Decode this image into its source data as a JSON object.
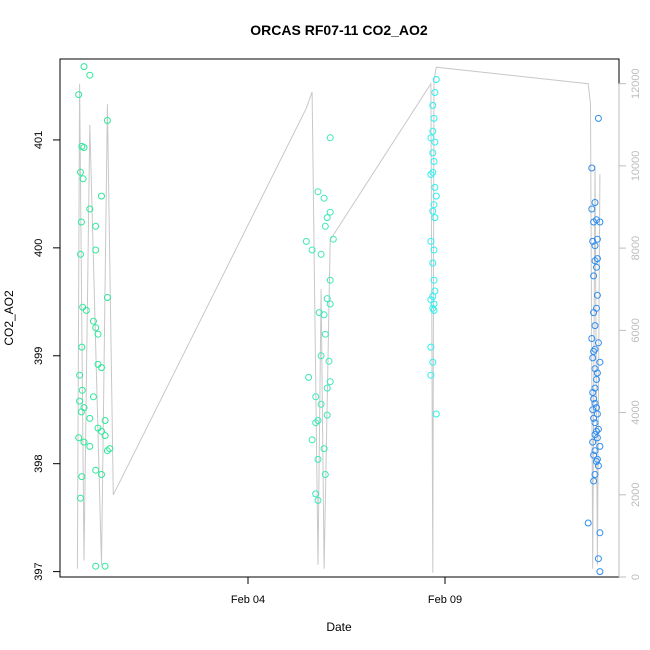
{
  "chart_data": {
    "type": "scatter",
    "title": "ORCAS RF07-11 CO2_AO2",
    "xlabel": "Date",
    "ylabel": "CO2_AO2",
    "x_ticks": [
      "Feb 04",
      "Feb 09"
    ],
    "y_ticks": [
      397,
      398,
      399,
      400,
      401
    ],
    "ylim": [
      396.95,
      401.75
    ],
    "right_axis": {
      "ticks": [
        0,
        2000,
        4000,
        6000,
        8000,
        10000,
        12000
      ],
      "ylim": [
        0,
        12600
      ],
      "color": "#bdbdbd"
    },
    "grid": false,
    "legend": "none",
    "series": [
      {
        "color": "#2ee89a",
        "points": [
          [
            0,
            401.68
          ],
          [
            0.05,
            401.6
          ],
          [
            0.2,
            401.18
          ],
          [
            -0.12,
            401.42
          ],
          [
            -0.05,
            400.94
          ],
          [
            0.0,
            400.93
          ],
          [
            -0.08,
            400.7
          ],
          [
            -0.02,
            400.64
          ],
          [
            0.15,
            400.48
          ],
          [
            0.05,
            400.36
          ],
          [
            -0.06,
            400.24
          ],
          [
            0.1,
            400.2
          ],
          [
            0.1,
            399.98
          ],
          [
            -0.08,
            399.94
          ],
          [
            0.2,
            399.54
          ],
          [
            -0.03,
            399.45
          ],
          [
            0.02,
            399.42
          ],
          [
            0.08,
            399.32
          ],
          [
            0.1,
            399.26
          ],
          [
            0.12,
            399.2
          ],
          [
            -0.05,
            399.08
          ],
          [
            0.12,
            398.92
          ],
          [
            0.15,
            398.89
          ],
          [
            -0.1,
            398.82
          ],
          [
            -0.04,
            398.68
          ],
          [
            0.08,
            398.62
          ],
          [
            -0.1,
            398.58
          ],
          [
            0.0,
            398.52
          ],
          [
            -0.06,
            398.48
          ],
          [
            0.05,
            398.42
          ],
          [
            0.18,
            398.4
          ],
          [
            0.12,
            398.33
          ],
          [
            0.15,
            398.3
          ],
          [
            0.18,
            398.26
          ],
          [
            -0.12,
            398.24
          ],
          [
            0.0,
            398.2
          ],
          [
            0.05,
            398.16
          ],
          [
            0.2,
            398.12
          ],
          [
            0.22,
            398.14
          ],
          [
            0.1,
            397.94
          ],
          [
            -0.05,
            397.88
          ],
          [
            0.15,
            397.9
          ],
          [
            -0.08,
            397.68
          ],
          [
            0.1,
            397.05
          ],
          [
            0.18,
            397.05
          ]
        ]
      },
      {
        "color": "#3de8b8",
        "points": [
          [
            2.2,
            401.02
          ],
          [
            2.0,
            400.52
          ],
          [
            2.1,
            400.46
          ],
          [
            2.2,
            400.33
          ],
          [
            2.15,
            400.28
          ],
          [
            2.12,
            400.2
          ],
          [
            2.25,
            400.08
          ],
          [
            1.9,
            400.06
          ],
          [
            1.95,
            399.98
          ],
          [
            2.05,
            399.94
          ],
          [
            2.2,
            399.7
          ],
          [
            2.15,
            399.53
          ],
          [
            2.2,
            399.48
          ],
          [
            2.02,
            399.4
          ],
          [
            2.1,
            399.38
          ],
          [
            2.12,
            399.2
          ],
          [
            2.05,
            399.0
          ],
          [
            2.18,
            398.95
          ],
          [
            1.92,
            398.8
          ],
          [
            2.2,
            398.76
          ],
          [
            2.15,
            398.7
          ],
          [
            1.98,
            398.62
          ],
          [
            2.05,
            398.55
          ],
          [
            2.15,
            398.45
          ],
          [
            2.0,
            398.4
          ],
          [
            1.98,
            398.38
          ],
          [
            1.95,
            398.22
          ],
          [
            2.1,
            398.14
          ],
          [
            2.0,
            398.04
          ],
          [
            2.12,
            397.9
          ],
          [
            1.98,
            397.72
          ],
          [
            2.0,
            397.66
          ]
        ]
      },
      {
        "color": "#2ef0f0",
        "points": [
          [
            3.95,
            401.56
          ],
          [
            3.92,
            401.44
          ],
          [
            3.88,
            401.32
          ],
          [
            3.9,
            401.2
          ],
          [
            3.88,
            401.08
          ],
          [
            3.85,
            401.02
          ],
          [
            3.92,
            400.98
          ],
          [
            3.88,
            400.88
          ],
          [
            3.9,
            400.8
          ],
          [
            3.85,
            400.68
          ],
          [
            3.88,
            400.7
          ],
          [
            3.92,
            400.56
          ],
          [
            3.95,
            400.48
          ],
          [
            3.9,
            400.4
          ],
          [
            3.88,
            400.34
          ],
          [
            3.92,
            400.28
          ],
          [
            3.85,
            400.06
          ],
          [
            3.9,
            399.98
          ],
          [
            3.88,
            399.86
          ],
          [
            3.9,
            399.7
          ],
          [
            3.92,
            399.6
          ],
          [
            3.88,
            399.55
          ],
          [
            3.85,
            399.52
          ],
          [
            3.9,
            399.48
          ],
          [
            3.88,
            399.44
          ],
          [
            3.9,
            399.42
          ],
          [
            3.85,
            399.08
          ],
          [
            3.88,
            398.94
          ],
          [
            3.85,
            398.82
          ],
          [
            3.95,
            398.46
          ]
        ]
      },
      {
        "color": "#2e8ef0",
        "points": [
          [
            7.38,
            400.74
          ],
          [
            7.45,
            400.42
          ],
          [
            7.38,
            400.36
          ],
          [
            7.48,
            400.26
          ],
          [
            7.42,
            400.24
          ],
          [
            7.55,
            400.24
          ],
          [
            7.5,
            400.08
          ],
          [
            7.4,
            400.06
          ],
          [
            7.45,
            400.02
          ],
          [
            7.5,
            399.9
          ],
          [
            7.45,
            399.88
          ],
          [
            7.48,
            399.82
          ],
          [
            7.42,
            399.74
          ],
          [
            7.5,
            399.56
          ],
          [
            7.48,
            399.44
          ],
          [
            7.42,
            399.4
          ],
          [
            7.45,
            399.28
          ],
          [
            7.38,
            399.16
          ],
          [
            7.52,
            399.12
          ],
          [
            7.45,
            399.06
          ],
          [
            7.42,
            399.04
          ],
          [
            7.4,
            398.98
          ],
          [
            7.55,
            398.94
          ],
          [
            7.45,
            398.88
          ],
          [
            7.5,
            398.84
          ],
          [
            7.48,
            398.78
          ],
          [
            7.45,
            398.7
          ],
          [
            7.4,
            398.66
          ],
          [
            7.42,
            398.6
          ],
          [
            7.45,
            398.56
          ],
          [
            7.48,
            398.52
          ],
          [
            7.4,
            398.5
          ],
          [
            7.5,
            398.46
          ],
          [
            7.42,
            398.42
          ],
          [
            7.45,
            398.38
          ],
          [
            7.52,
            398.32
          ],
          [
            7.48,
            398.3
          ],
          [
            7.45,
            398.27
          ],
          [
            7.5,
            398.24
          ],
          [
            7.4,
            398.2
          ],
          [
            7.55,
            398.16
          ],
          [
            7.45,
            398.12
          ],
          [
            7.42,
            398.08
          ],
          [
            7.5,
            398.04
          ],
          [
            7.48,
            398.02
          ],
          [
            7.52,
            397.98
          ],
          [
            7.45,
            397.9
          ],
          [
            7.42,
            397.84
          ],
          [
            7.3,
            397.45
          ],
          [
            7.55,
            397.36
          ],
          [
            7.52,
            397.12
          ],
          [
            7.55,
            397.0
          ],
          [
            7.52,
            401.2
          ]
        ]
      }
    ],
    "line_series": {
      "color": "#c8c8c8",
      "axis": "right",
      "points": [
        [
          -0.15,
          200
        ],
        [
          -0.1,
          12000
        ],
        [
          0.0,
          400
        ],
        [
          0.05,
          11000
        ],
        [
          0.15,
          300
        ],
        [
          0.2,
          11500
        ],
        [
          0.25,
          2000
        ],
        [
          1.9,
          11400
        ],
        [
          1.95,
          11800
        ],
        [
          2.0,
          300
        ],
        [
          2.05,
          7000
        ],
        [
          2.1,
          200
        ],
        [
          2.2,
          8200
        ],
        [
          3.85,
          12000
        ],
        [
          3.88,
          100
        ],
        [
          3.9,
          12100
        ],
        [
          3.95,
          12400
        ],
        [
          7.3,
          12000
        ],
        [
          7.35,
          11500
        ],
        [
          7.4,
          200
        ],
        [
          7.45,
          10000
        ],
        [
          7.5,
          300
        ],
        [
          7.55,
          9800
        ]
      ]
    }
  }
}
